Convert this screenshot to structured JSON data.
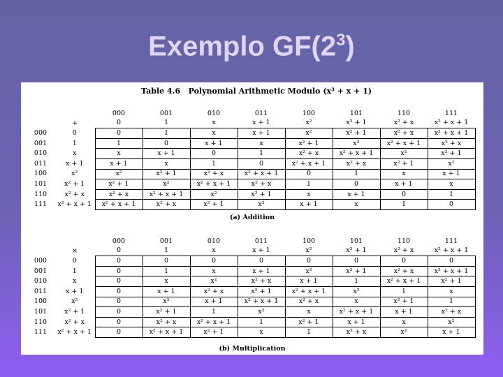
{
  "title": {
    "text": "Exemplo GF(2",
    "superscript": "3",
    "suffix": ")"
  },
  "table_caption": {
    "label": "Table 4.6",
    "text": "Polynomial Arithmetic Modulo (x³ + x + 1)"
  },
  "binary_labels": [
    "000",
    "001",
    "010",
    "011",
    "100",
    "101",
    "110",
    "111"
  ],
  "poly_labels": [
    "0",
    "1",
    "x",
    "x + 1",
    "x²",
    "x² + 1",
    "x² + x",
    "x² + x + 1"
  ],
  "addition": {
    "symbol": "+",
    "caption": "(a) Addition",
    "rows": [
      [
        "0",
        "1",
        "x",
        "x + 1",
        "x²",
        "x² + 1",
        "x² + x",
        "x² + x + 1"
      ],
      [
        "1",
        "0",
        "x + 1",
        "x",
        "x² + 1",
        "x²",
        "x² + x + 1",
        "x² + x"
      ],
      [
        "x",
        "x + 1",
        "0",
        "1",
        "x² + x",
        "x² + x + 1",
        "x²",
        "x² + 1"
      ],
      [
        "x + 1",
        "x",
        "1",
        "0",
        "x² + x + 1",
        "x² + x",
        "x² + 1",
        "x²"
      ],
      [
        "x²",
        "x² + 1",
        "x² + x",
        "x² + x + 1",
        "0",
        "1",
        "x",
        "x + 1"
      ],
      [
        "x² + 1",
        "x²",
        "x² + x + 1",
        "x² + x",
        "1",
        "0",
        "x + 1",
        "x"
      ],
      [
        "x² + x",
        "x² + x + 1",
        "x²",
        "x² + 1",
        "x",
        "x + 1",
        "0",
        "1"
      ],
      [
        "x² + x + 1",
        "x² + x",
        "x² + 1",
        "x²",
        "x + 1",
        "x",
        "1",
        "0"
      ]
    ]
  },
  "multiplication": {
    "symbol": "×",
    "caption": "(b) Multiplication",
    "rows": [
      [
        "0",
        "0",
        "0",
        "0",
        "0",
        "0",
        "0",
        "0"
      ],
      [
        "0",
        "1",
        "x",
        "x + 1",
        "x²",
        "x² + 1",
        "x² + x",
        "x² + x + 1"
      ],
      [
        "0",
        "x",
        "x²",
        "x² + x",
        "x + 1",
        "1",
        "x² + x + 1",
        "x² + 1"
      ],
      [
        "0",
        "x + 1",
        "x² + x",
        "x² + 1",
        "x² + x + 1",
        "x²",
        "1",
        "x"
      ],
      [
        "0",
        "x²",
        "x + 1",
        "x² + x + 1",
        "x² + x",
        "x",
        "x² + 1",
        "1"
      ],
      [
        "0",
        "x² + 1",
        "1",
        "x²",
        "x",
        "x² + x + 1",
        "x + 1",
        "x² + x"
      ],
      [
        "0",
        "x² + x",
        "x² + x + 1",
        "1",
        "x² + 1",
        "x + 1",
        "x",
        "x²"
      ],
      [
        "0",
        "x² + x + 1",
        "x² + 1",
        "x",
        "1",
        "x² + x",
        "x²",
        "x + 1"
      ]
    ]
  }
}
